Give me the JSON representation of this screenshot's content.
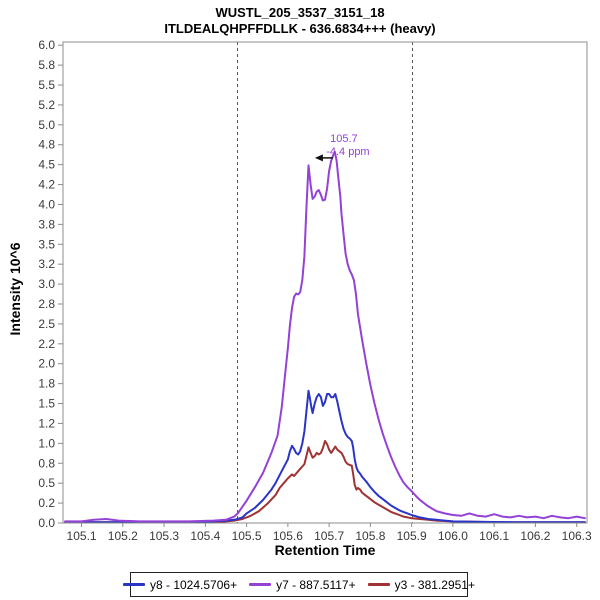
{
  "header": {
    "title": "WUSTL_205_3537_3151_18",
    "subtitle": "ITLDEALQHPFFDLLK - 636.6834+++ (heavy)"
  },
  "chart_data": {
    "type": "line",
    "title": "WUSTL_205_3537_3151_18",
    "subtitle": "ITLDEALQHPFFDLLK - 636.6834+++ (heavy)",
    "xlabel": "Retention Time",
    "ylabel": "Intensity 10^6",
    "xlim": [
      105.055,
      106.325
    ],
    "ylim": [
      0,
      6.04
    ],
    "grid": false,
    "legend_position": "bottom",
    "x_ticks": {
      "values": [
        105.1,
        105.2,
        105.3,
        105.4,
        105.5,
        105.6,
        105.7,
        105.8,
        105.9,
        106.0,
        106.1,
        106.2,
        106.3
      ],
      "labels": [
        "105.1",
        "105.2",
        "105.3",
        "105.4",
        "105.5",
        "105.6",
        "105.7",
        "105.8",
        "105.9",
        "106.0",
        "106.1",
        "106.2",
        "106.3"
      ]
    },
    "y_ticks": {
      "values": [
        0,
        0.25,
        0.5,
        0.75,
        1.0,
        1.25,
        1.5,
        1.75,
        2.0,
        2.25,
        2.5,
        2.75,
        3.0,
        3.25,
        3.5,
        3.75,
        4.0,
        4.25,
        4.5,
        4.75,
        5.0,
        5.25,
        5.5,
        5.75,
        6.0
      ],
      "labels": [
        "0.0",
        "0.2",
        "0.5",
        "0.8",
        "1.0",
        "1.2",
        "1.5",
        "1.8",
        "2.0",
        "2.2",
        "2.5",
        "2.8",
        "3.0",
        "3.2",
        "3.5",
        "3.8",
        "4.0",
        "4.2",
        "4.5",
        "4.8",
        "5.0",
        "5.2",
        "5.5",
        "5.8",
        "6.0"
      ]
    },
    "peak_boundaries": [
      105.478,
      105.902
    ],
    "annotation": {
      "x": 105.714,
      "y": 4.66,
      "lines": [
        "105.7",
        "-4.4 ppm"
      ],
      "color": "#9441D6",
      "arrow_color": "#111111"
    },
    "series": [
      {
        "name": "y8 - 1024.5706+",
        "id": "y8",
        "color": "#2A35C8",
        "points": [
          [
            105.06,
            0.01
          ],
          [
            105.15,
            0.01
          ],
          [
            105.25,
            0.01
          ],
          [
            105.35,
            0.01
          ],
          [
            105.42,
            0.02
          ],
          [
            105.45,
            0.03
          ],
          [
            105.47,
            0.04
          ],
          [
            105.49,
            0.07
          ],
          [
            105.5,
            0.12
          ],
          [
            105.52,
            0.19
          ],
          [
            105.54,
            0.29
          ],
          [
            105.56,
            0.42
          ],
          [
            105.57,
            0.5
          ],
          [
            105.58,
            0.6
          ],
          [
            105.59,
            0.7
          ],
          [
            105.6,
            0.8
          ],
          [
            105.605,
            0.9
          ],
          [
            105.61,
            0.97
          ],
          [
            105.615,
            0.93
          ],
          [
            105.62,
            0.88
          ],
          [
            105.625,
            0.86
          ],
          [
            105.63,
            0.9
          ],
          [
            105.635,
            1.0
          ],
          [
            105.64,
            1.15
          ],
          [
            105.645,
            1.4
          ],
          [
            105.65,
            1.66
          ],
          [
            105.653,
            1.58
          ],
          [
            105.657,
            1.45
          ],
          [
            105.66,
            1.38
          ],
          [
            105.665,
            1.5
          ],
          [
            105.67,
            1.58
          ],
          [
            105.675,
            1.62
          ],
          [
            105.68,
            1.58
          ],
          [
            105.685,
            1.47
          ],
          [
            105.69,
            1.52
          ],
          [
            105.695,
            1.62
          ],
          [
            105.7,
            1.62
          ],
          [
            105.705,
            1.58
          ],
          [
            105.71,
            1.58
          ],
          [
            105.715,
            1.62
          ],
          [
            105.72,
            1.52
          ],
          [
            105.725,
            1.4
          ],
          [
            105.73,
            1.28
          ],
          [
            105.735,
            1.18
          ],
          [
            105.74,
            1.12
          ],
          [
            105.745,
            1.08
          ],
          [
            105.75,
            1.06
          ],
          [
            105.755,
            1.03
          ],
          [
            105.758,
            0.95
          ],
          [
            105.762,
            0.8
          ],
          [
            105.766,
            0.7
          ],
          [
            105.77,
            0.65
          ],
          [
            105.775,
            0.62
          ],
          [
            105.78,
            0.58
          ],
          [
            105.79,
            0.52
          ],
          [
            105.8,
            0.45
          ],
          [
            105.81,
            0.39
          ],
          [
            105.82,
            0.34
          ],
          [
            105.83,
            0.3
          ],
          [
            105.84,
            0.26
          ],
          [
            105.85,
            0.22
          ],
          [
            105.86,
            0.19
          ],
          [
            105.87,
            0.16
          ],
          [
            105.88,
            0.14
          ],
          [
            105.89,
            0.12
          ],
          [
            105.9,
            0.1
          ],
          [
            105.92,
            0.07
          ],
          [
            105.94,
            0.05
          ],
          [
            105.96,
            0.04
          ],
          [
            105.98,
            0.03
          ],
          [
            106.0,
            0.02
          ],
          [
            106.05,
            0.015
          ],
          [
            106.1,
            0.012
          ],
          [
            106.15,
            0.01
          ],
          [
            106.25,
            0.01
          ],
          [
            106.32,
            0.01
          ]
        ]
      },
      {
        "name": "y7 - 887.5117+",
        "id": "y7",
        "color": "#9441D6",
        "points": [
          [
            105.06,
            0.02
          ],
          [
            105.1,
            0.02
          ],
          [
            105.13,
            0.04
          ],
          [
            105.16,
            0.05
          ],
          [
            105.19,
            0.03
          ],
          [
            105.24,
            0.02
          ],
          [
            105.3,
            0.02
          ],
          [
            105.36,
            0.02
          ],
          [
            105.42,
            0.03
          ],
          [
            105.45,
            0.04
          ],
          [
            105.47,
            0.08
          ],
          [
            105.48,
            0.13
          ],
          [
            105.5,
            0.28
          ],
          [
            105.52,
            0.45
          ],
          [
            105.54,
            0.63
          ],
          [
            105.56,
            0.88
          ],
          [
            105.575,
            1.1
          ],
          [
            105.585,
            1.45
          ],
          [
            105.595,
            1.95
          ],
          [
            105.6,
            2.2
          ],
          [
            105.605,
            2.48
          ],
          [
            105.61,
            2.7
          ],
          [
            105.615,
            2.84
          ],
          [
            105.62,
            2.88
          ],
          [
            105.625,
            2.87
          ],
          [
            105.63,
            2.9
          ],
          [
            105.635,
            3.05
          ],
          [
            105.64,
            3.35
          ],
          [
            105.645,
            3.95
          ],
          [
            105.65,
            4.49
          ],
          [
            105.655,
            4.25
          ],
          [
            105.66,
            4.07
          ],
          [
            105.665,
            4.1
          ],
          [
            105.67,
            4.16
          ],
          [
            105.675,
            4.18
          ],
          [
            105.68,
            4.12
          ],
          [
            105.685,
            4.05
          ],
          [
            105.69,
            4.06
          ],
          [
            105.695,
            4.2
          ],
          [
            105.7,
            4.42
          ],
          [
            105.705,
            4.55
          ],
          [
            105.71,
            4.62
          ],
          [
            105.714,
            4.66
          ],
          [
            105.718,
            4.55
          ],
          [
            105.722,
            4.35
          ],
          [
            105.727,
            4.1
          ],
          [
            105.73,
            3.88
          ],
          [
            105.735,
            3.62
          ],
          [
            105.74,
            3.38
          ],
          [
            105.745,
            3.25
          ],
          [
            105.75,
            3.17
          ],
          [
            105.755,
            3.12
          ],
          [
            105.76,
            3.05
          ],
          [
            105.765,
            2.88
          ],
          [
            105.77,
            2.62
          ],
          [
            105.78,
            2.3
          ],
          [
            105.79,
            2.0
          ],
          [
            105.8,
            1.73
          ],
          [
            105.81,
            1.5
          ],
          [
            105.82,
            1.3
          ],
          [
            105.83,
            1.12
          ],
          [
            105.84,
            0.97
          ],
          [
            105.85,
            0.83
          ],
          [
            105.86,
            0.71
          ],
          [
            105.87,
            0.6
          ],
          [
            105.88,
            0.51
          ],
          [
            105.89,
            0.45
          ],
          [
            105.9,
            0.4
          ],
          [
            105.91,
            0.34
          ],
          [
            105.92,
            0.29
          ],
          [
            105.93,
            0.25
          ],
          [
            105.94,
            0.21
          ],
          [
            105.95,
            0.18
          ],
          [
            105.96,
            0.15
          ],
          [
            105.98,
            0.12
          ],
          [
            106.0,
            0.1
          ],
          [
            106.02,
            0.09
          ],
          [
            106.04,
            0.12
          ],
          [
            106.06,
            0.09
          ],
          [
            106.08,
            0.08
          ],
          [
            106.1,
            0.11
          ],
          [
            106.12,
            0.08
          ],
          [
            106.14,
            0.07
          ],
          [
            106.16,
            0.09
          ],
          [
            106.18,
            0.07
          ],
          [
            106.2,
            0.08
          ],
          [
            106.22,
            0.06
          ],
          [
            106.24,
            0.09
          ],
          [
            106.26,
            0.07
          ],
          [
            106.28,
            0.06
          ],
          [
            106.3,
            0.08
          ],
          [
            106.32,
            0.06
          ]
        ]
      },
      {
        "name": "y3 - 381.2951+",
        "id": "y3",
        "color": "#A03232",
        "points": [
          [
            105.06,
            0.01
          ],
          [
            105.2,
            0.01
          ],
          [
            105.35,
            0.01
          ],
          [
            105.44,
            0.015
          ],
          [
            105.47,
            0.03
          ],
          [
            105.49,
            0.05
          ],
          [
            105.51,
            0.09
          ],
          [
            105.53,
            0.15
          ],
          [
            105.55,
            0.24
          ],
          [
            105.57,
            0.35
          ],
          [
            105.58,
            0.44
          ],
          [
            105.59,
            0.5
          ],
          [
            105.6,
            0.56
          ],
          [
            105.61,
            0.61
          ],
          [
            105.615,
            0.59
          ],
          [
            105.62,
            0.62
          ],
          [
            105.63,
            0.68
          ],
          [
            105.635,
            0.71
          ],
          [
            105.64,
            0.74
          ],
          [
            105.645,
            0.84
          ],
          [
            105.65,
            0.95
          ],
          [
            105.655,
            0.88
          ],
          [
            105.66,
            0.82
          ],
          [
            105.665,
            0.84
          ],
          [
            105.67,
            0.88
          ],
          [
            105.675,
            0.86
          ],
          [
            105.68,
            0.88
          ],
          [
            105.685,
            0.94
          ],
          [
            105.69,
            1.03
          ],
          [
            105.695,
            0.99
          ],
          [
            105.7,
            0.92
          ],
          [
            105.705,
            0.88
          ],
          [
            105.71,
            0.92
          ],
          [
            105.715,
            0.96
          ],
          [
            105.72,
            0.92
          ],
          [
            105.725,
            0.9
          ],
          [
            105.73,
            0.88
          ],
          [
            105.735,
            0.83
          ],
          [
            105.74,
            0.77
          ],
          [
            105.745,
            0.74
          ],
          [
            105.75,
            0.73
          ],
          [
            105.755,
            0.72
          ],
          [
            105.758,
            0.62
          ],
          [
            105.762,
            0.48
          ],
          [
            105.766,
            0.42
          ],
          [
            105.77,
            0.44
          ],
          [
            105.775,
            0.42
          ],
          [
            105.78,
            0.38
          ],
          [
            105.79,
            0.34
          ],
          [
            105.8,
            0.3
          ],
          [
            105.81,
            0.26
          ],
          [
            105.82,
            0.23
          ],
          [
            105.83,
            0.2
          ],
          [
            105.84,
            0.17
          ],
          [
            105.85,
            0.14
          ],
          [
            105.86,
            0.12
          ],
          [
            105.87,
            0.1
          ],
          [
            105.88,
            0.08
          ],
          [
            105.89,
            0.07
          ],
          [
            105.9,
            0.06
          ],
          [
            105.92,
            0.05
          ],
          [
            105.94,
            0.04
          ],
          [
            105.96,
            0.03
          ],
          [
            105.98,
            0.025
          ],
          [
            106.0,
            0.02
          ],
          [
            106.05,
            0.015
          ],
          [
            106.1,
            0.01
          ],
          [
            106.2,
            0.01
          ],
          [
            106.32,
            0.01
          ]
        ]
      }
    ],
    "colors": {
      "frame": "#8C8C8C",
      "tick_text": "#3A3A3A",
      "boundary_line": "#555555"
    }
  },
  "legend": {
    "items": [
      {
        "label": "y8 - 1024.5706+",
        "color": "#2A35C8"
      },
      {
        "label": "y7 - 887.5117+",
        "color": "#9441D6"
      },
      {
        "label": "y3 - 381.2951+",
        "color": "#A03232"
      }
    ]
  }
}
